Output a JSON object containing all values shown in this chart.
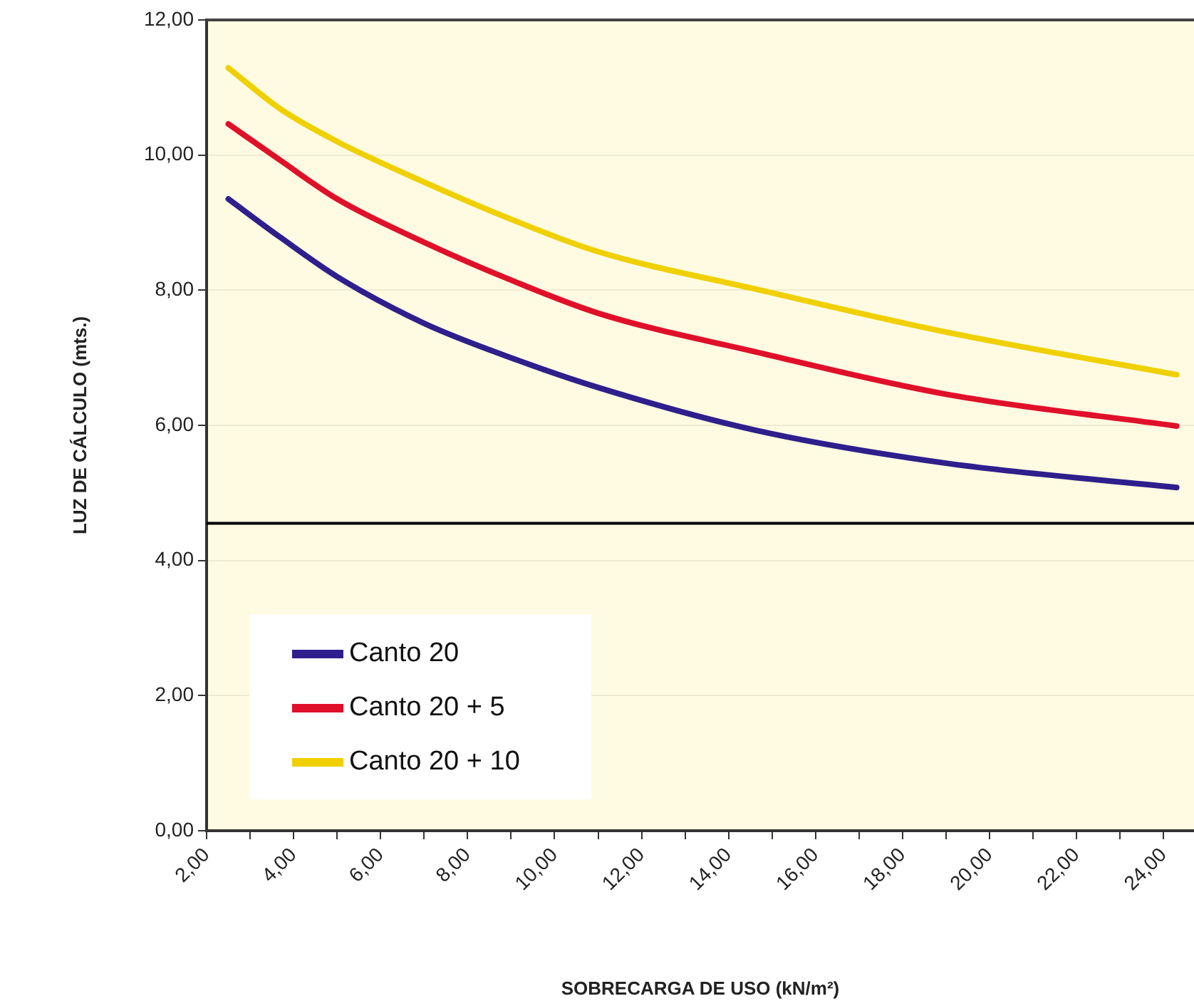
{
  "chart_data": {
    "type": "line",
    "xlabel": "SOBRECARGA DE USO (kN/m²)",
    "ylabel": "LUZ DE CÁLCULO (mts.)",
    "xlim": [
      2,
      24.7
    ],
    "xticks": [
      {
        "value": 2,
        "label": "2,00"
      },
      {
        "value": 3,
        "label": null
      },
      {
        "value": 4,
        "label": "4,00"
      },
      {
        "value": 5,
        "label": null
      },
      {
        "value": 6,
        "label": "6,00"
      },
      {
        "value": 7,
        "label": null
      },
      {
        "value": 8,
        "label": "8,00"
      },
      {
        "value": 9,
        "label": null
      },
      {
        "value": 10,
        "label": "10,00"
      },
      {
        "value": 11,
        "label": null
      },
      {
        "value": 12,
        "label": "12,00"
      },
      {
        "value": 13,
        "label": null
      },
      {
        "value": 14,
        "label": "14,00"
      },
      {
        "value": 15,
        "label": null
      },
      {
        "value": 16,
        "label": "16,00"
      },
      {
        "value": 17,
        "label": null
      },
      {
        "value": 18,
        "label": "18,00"
      },
      {
        "value": 19,
        "label": null
      },
      {
        "value": 20,
        "label": "20,00"
      },
      {
        "value": 21,
        "label": null
      },
      {
        "value": 22,
        "label": "22,00"
      },
      {
        "value": 23,
        "label": null
      },
      {
        "value": 24,
        "label": "24,00"
      }
    ],
    "ylim": [
      0,
      12
    ],
    "yticks": [
      {
        "value": 0,
        "label": "0,00"
      },
      {
        "value": 2,
        "label": "2,00"
      },
      {
        "value": 4,
        "label": "4,00"
      },
      {
        "value": 6,
        "label": "6,00"
      },
      {
        "value": 8,
        "label": "8,00"
      },
      {
        "value": 10,
        "label": "10,00"
      },
      {
        "value": 12,
        "label": "12,00"
      }
    ],
    "x": [
      2.5,
      3.7,
      5,
      7,
      9,
      11,
      14.6,
      19,
      24.3
    ],
    "series": [
      {
        "name": "Canto 20",
        "color": "#2e1f8c",
        "values": [
          9.35,
          8.78,
          8.2,
          7.51,
          7.0,
          6.56,
          5.93,
          5.44,
          5.08
        ]
      },
      {
        "name": "Canto 20 + 5",
        "color": "#e0102a",
        "values": [
          10.46,
          9.92,
          9.35,
          8.71,
          8.15,
          7.66,
          7.09,
          6.46,
          5.99
        ]
      },
      {
        "name": "Canto 20 + 10",
        "color": "#f0d000",
        "values": [
          11.29,
          10.68,
          10.2,
          9.6,
          9.05,
          8.57,
          8.02,
          7.38,
          6.75
        ]
      }
    ],
    "ref_lines": [
      {
        "axis": "y",
        "value": 4.55,
        "color": "#000000",
        "line_style": "solid"
      }
    ],
    "grid": "y",
    "legend": "bottom left",
    "marker": "none",
    "line_style": "solid"
  }
}
